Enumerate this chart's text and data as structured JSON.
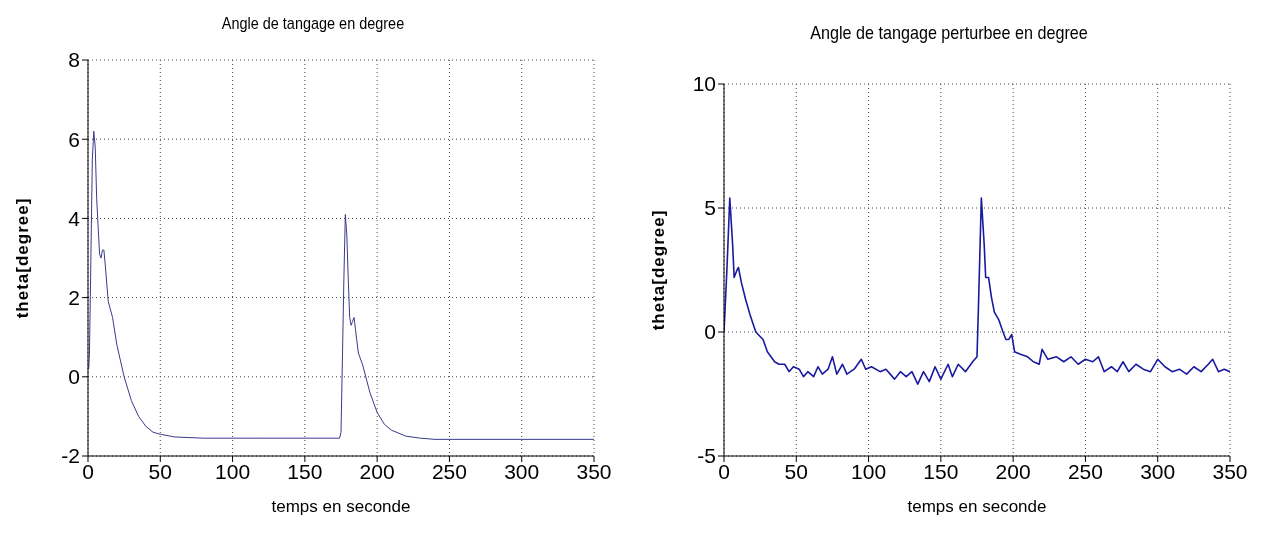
{
  "chart_data": [
    {
      "type": "line",
      "title": "Angle de tangage en degree",
      "xlabel": "temps en seconde",
      "ylabel": "theta[degree]",
      "xlim": [
        0,
        350
      ],
      "xticks": [
        0,
        50,
        100,
        150,
        200,
        250,
        300,
        350
      ],
      "ylim": [
        -2,
        8
      ],
      "yticks": [
        -2,
        0,
        2,
        4,
        6,
        8
      ],
      "grid": true,
      "marker": "none",
      "line_style": "solid",
      "series": [
        {
          "color": "#3a3a8a",
          "x": [
            0.5,
            1,
            2,
            3,
            4,
            5,
            6,
            7,
            8,
            9,
            10,
            11,
            12,
            14,
            17,
            20,
            25,
            30,
            35,
            40,
            45,
            50,
            60,
            80,
            120,
            174,
            175,
            176,
            177,
            178,
            179,
            180,
            181,
            182,
            183,
            184,
            185,
            187,
            190,
            195,
            200,
            205,
            210,
            220,
            230,
            240,
            350
          ],
          "values": [
            0.2,
            0.6,
            3,
            5.5,
            6.2,
            5.8,
            4.5,
            3.8,
            3.1,
            3.0,
            3.2,
            3.2,
            2.8,
            1.9,
            1.5,
            0.8,
            0,
            -0.6,
            -1.0,
            -1.25,
            -1.4,
            -1.45,
            -1.52,
            -1.55,
            -1.55,
            -1.55,
            -1.4,
            0.5,
            2.5,
            4.1,
            3.6,
            2.5,
            1.5,
            1.3,
            1.4,
            1.5,
            1.2,
            0.6,
            0.3,
            -0.4,
            -0.9,
            -1.2,
            -1.35,
            -1.5,
            -1.55,
            -1.58,
            -1.58
          ]
        }
      ]
    },
    {
      "type": "line",
      "title": "Angle de tangage perturbee en degree",
      "xlabel": "temps en seconde",
      "ylabel": "theta[degree]",
      "xlim": [
        0,
        350
      ],
      "xticks": [
        0,
        50,
        100,
        150,
        200,
        250,
        300,
        350
      ],
      "ylim": [
        -5,
        10
      ],
      "yticks": [
        -5,
        0,
        5,
        10
      ],
      "grid": true,
      "marker": "none",
      "line_style": "solid",
      "series": [
        {
          "color": "#1a1aa0",
          "x": [
            0,
            2,
            4,
            6,
            7,
            9,
            10,
            12,
            15,
            18,
            22,
            27,
            30,
            35,
            38,
            42,
            45,
            48,
            52,
            55,
            58,
            62,
            65,
            68,
            72,
            75,
            78,
            82,
            85,
            90,
            95,
            98,
            102,
            108,
            112,
            118,
            122,
            126,
            130,
            134,
            138,
            142,
            146,
            150,
            155,
            158,
            162,
            167,
            172,
            175,
            176,
            178,
            180,
            181,
            183,
            185,
            187,
            190,
            193,
            195,
            197,
            199,
            201,
            205,
            210,
            214,
            218,
            220,
            224,
            230,
            235,
            240,
            245,
            250,
            255,
            259,
            263,
            268,
            272,
            276,
            280,
            285,
            290,
            295,
            300,
            305,
            310,
            315,
            320,
            325,
            330,
            335,
            338,
            342,
            346,
            350
          ],
          "values": [
            0,
            2.5,
            5.4,
            3.5,
            2.2,
            2.5,
            2.6,
            2,
            1.3,
            0.7,
            0,
            -0.3,
            -0.8,
            -1.2,
            -1.3,
            -1.3,
            -1.6,
            -1.4,
            -1.5,
            -1.8,
            -1.6,
            -1.8,
            -1.4,
            -1.7,
            -1.5,
            -1.0,
            -1.7,
            -1.3,
            -1.7,
            -1.5,
            -1.1,
            -1.5,
            -1.4,
            -1.6,
            -1.5,
            -1.9,
            -1.6,
            -1.8,
            -1.6,
            -2.1,
            -1.6,
            -2.0,
            -1.4,
            -1.9,
            -1.3,
            -1.8,
            -1.3,
            -1.6,
            -1.2,
            -1.0,
            1.0,
            5.4,
            3.5,
            2.2,
            2.2,
            1.4,
            0.8,
            0.5,
            0,
            -0.3,
            -0.3,
            -0.1,
            -0.8,
            -0.9,
            -1.0,
            -1.2,
            -1.3,
            -0.7,
            -1.1,
            -1.0,
            -1.2,
            -1.0,
            -1.3,
            -1.1,
            -1.2,
            -1.0,
            -1.6,
            -1.4,
            -1.6,
            -1.2,
            -1.6,
            -1.3,
            -1.5,
            -1.6,
            -1.1,
            -1.4,
            -1.6,
            -1.5,
            -1.7,
            -1.4,
            -1.6,
            -1.3,
            -1.1,
            -1.6,
            -1.5,
            -1.6
          ]
        }
      ]
    }
  ]
}
